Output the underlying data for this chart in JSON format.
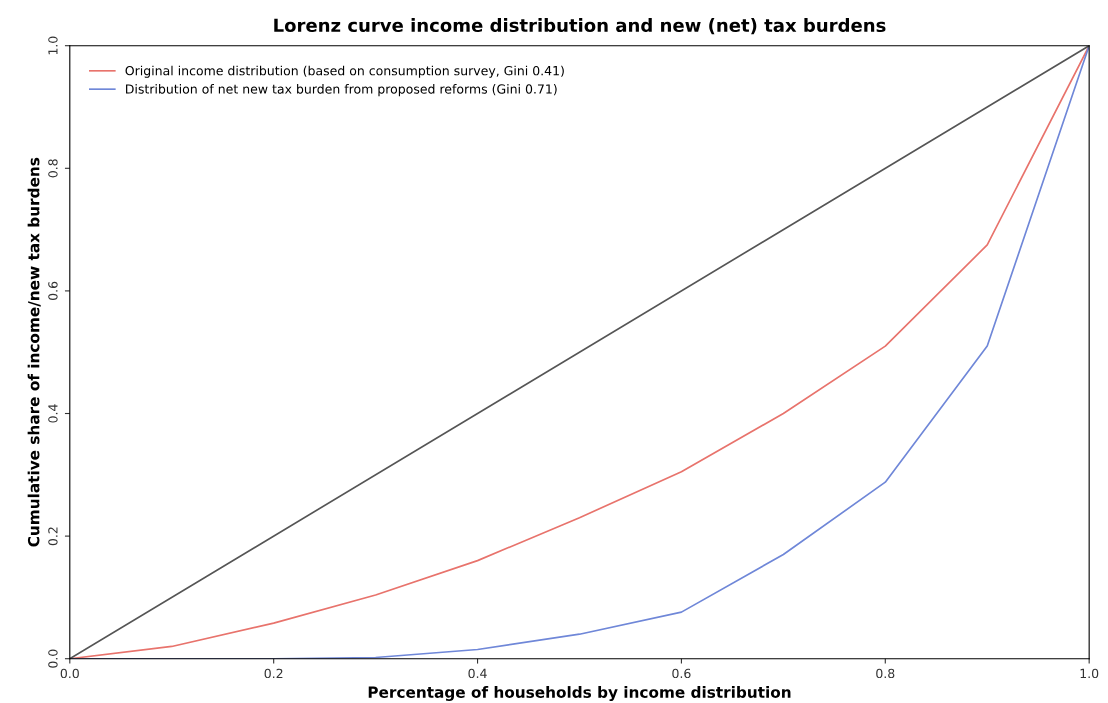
{
  "chart_data": {
    "type": "line",
    "title": "Lorenz curve income distribution and new (net) tax burdens",
    "xlabel": "Percentage of households by income distribution",
    "ylabel": "Cumulative share of income/new tax burdens",
    "x": [
      0,
      0.1,
      0.2,
      0.3,
      0.4,
      0.5,
      0.6,
      0.7,
      0.8,
      0.9,
      1.0
    ],
    "series": [
      {
        "name": "Original income distribution (based on consumption survey, Gini 0.41)",
        "color": "#e8736c",
        "values": [
          0,
          0.02,
          0.058,
          0.104,
          0.16,
          0.23,
          0.305,
          0.4,
          0.51,
          0.675,
          1.0
        ]
      },
      {
        "name": "Distribution of net new tax burden from proposed reforms (Gini 0.71)",
        "color": "#6f87d8",
        "values": [
          0,
          0,
          0,
          0.002,
          0.015,
          0.04,
          0.076,
          0.17,
          0.288,
          0.51,
          1.0
        ]
      },
      {
        "color": "#555555",
        "x": [
          0,
          1
        ],
        "values": [
          0,
          1
        ]
      }
    ],
    "xlim": [
      0,
      1
    ],
    "ylim": [
      0,
      1
    ],
    "xticks": [
      {
        "value": 0,
        "label": "0.0"
      },
      0.2,
      0.4,
      0.6,
      0.8,
      {
        "value": 1,
        "label": "1.0"
      }
    ],
    "yticks": [
      {
        "value": 0,
        "label": "0.0"
      },
      0.2,
      0.4,
      0.6,
      0.8,
      {
        "value": 1,
        "label": "1.0"
      }
    ],
    "grid": false,
    "legend": "top left",
    "marker": "none",
    "line_style": "solid"
  }
}
